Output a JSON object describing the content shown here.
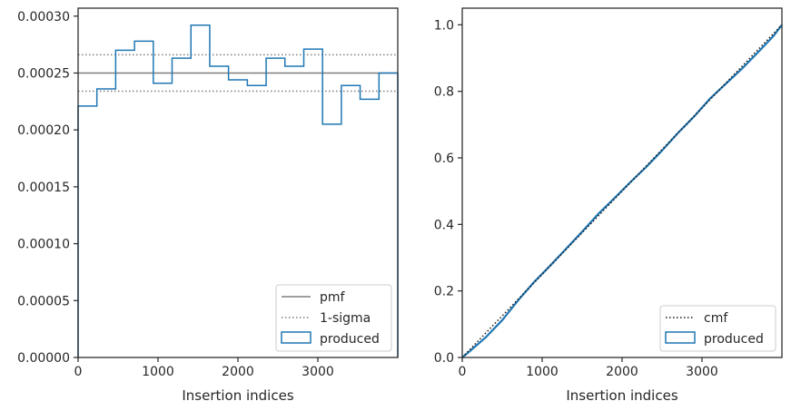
{
  "chart_data": [
    {
      "type": "line",
      "xlabel": "Insertion indices",
      "ylabel": "",
      "xlim": [
        0,
        4000
      ],
      "ylim": [
        0,
        0.000307
      ],
      "xticks": [
        0,
        1000,
        2000,
        3000
      ],
      "xtick_labels": [
        "0",
        "1000",
        "2000",
        "3000"
      ],
      "yticks": [
        0,
        5e-05,
        0.0001,
        0.00015,
        0.0002,
        0.00025,
        0.0003
      ],
      "ytick_labels": [
        "0.00000",
        "0.00005",
        "0.00010",
        "0.00015",
        "0.00020",
        "0.00025",
        "0.00030"
      ],
      "grid": false,
      "legend_position": "lower-right",
      "pmf": 0.00025,
      "sigma_band": [
        0.000234,
        0.000266
      ],
      "bin_edges": [
        0,
        235,
        470,
        706,
        941,
        1176,
        1412,
        1647,
        1882,
        2118,
        2353,
        2588,
        2824,
        3059,
        3294,
        3529,
        3765,
        4000
      ],
      "produced": [
        0.000221,
        0.000236,
        0.00027,
        0.000278,
        0.000241,
        0.000263,
        0.000292,
        0.000256,
        0.000244,
        0.000239,
        0.000263,
        0.000256,
        0.000271,
        0.000205,
        0.000239,
        0.000227,
        0.00025
      ],
      "series": [
        {
          "name": "pmf",
          "color": "#7f7f7f",
          "style": "solid"
        },
        {
          "name": "1-sigma",
          "color": "#7f7f7f",
          "style": "dotted"
        },
        {
          "name": "produced",
          "color": "#1f77b4",
          "style": "step"
        }
      ]
    },
    {
      "type": "line",
      "xlabel": "Insertion indices",
      "ylabel": "",
      "xlim": [
        0,
        4000
      ],
      "ylim": [
        0,
        1.05
      ],
      "xticks": [
        0,
        1000,
        2000,
        3000
      ],
      "xtick_labels": [
        "0",
        "1000",
        "2000",
        "3000"
      ],
      "yticks": [
        0,
        0.2,
        0.4,
        0.6,
        0.8,
        1.0
      ],
      "ytick_labels": [
        "0.0",
        "0.2",
        "0.4",
        "0.6",
        "0.8",
        "1.0"
      ],
      "grid": false,
      "legend_position": "lower-right",
      "cmf_x": [
        0,
        4000
      ],
      "cmf_y": [
        0,
        1.0
      ],
      "produced_x": [
        0,
        100,
        300,
        500,
        700,
        900,
        1100,
        1300,
        1500,
        1700,
        1900,
        2100,
        2300,
        2500,
        2700,
        2900,
        3100,
        3300,
        3500,
        3700,
        3900,
        4000
      ],
      "produced_y": [
        0,
        0.02,
        0.062,
        0.112,
        0.172,
        0.227,
        0.276,
        0.327,
        0.378,
        0.431,
        0.478,
        0.526,
        0.572,
        0.622,
        0.675,
        0.724,
        0.778,
        0.823,
        0.868,
        0.917,
        0.968,
        1.0
      ],
      "series": [
        {
          "name": "cmf",
          "color": "#1a1a1a",
          "style": "dotted"
        },
        {
          "name": "produced",
          "color": "#1f77b4",
          "style": "solid"
        }
      ]
    }
  ]
}
